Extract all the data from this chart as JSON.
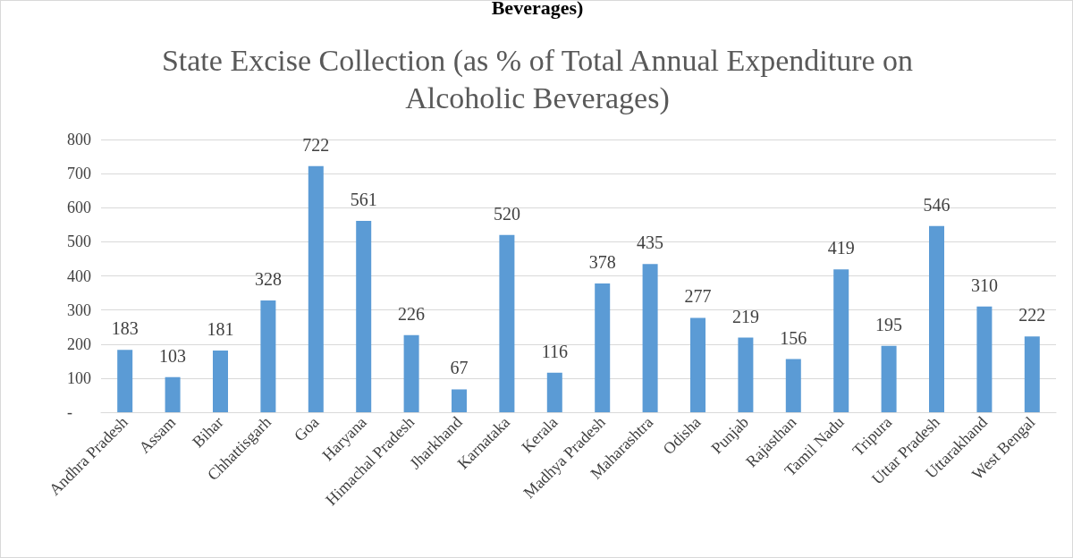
{
  "chart_data": {
    "type": "bar",
    "title": "State Excise Collection (as % of Total Annual Expenditure on\nAlcoholic Beverages)",
    "annotations": [
      "Beverages)"
    ],
    "categories": [
      "Andhra Pradesh",
      "Assam",
      "Bihar",
      "Chhattisgarh",
      "Goa",
      "Haryana",
      "Himachal Pradesh",
      "Jharkhand",
      "Karnataka",
      "Kerala",
      "Madhya Pradesh",
      "Maharashtra",
      "Odisha",
      "Punjab",
      "Rajasthan",
      "Tamil Nadu",
      "Tripura",
      "Uttar Pradesh",
      "Uttarakhand",
      "West Bengal"
    ],
    "values": [
      183,
      103,
      181,
      328,
      722,
      561,
      226,
      67,
      520,
      116,
      378,
      435,
      277,
      219,
      156,
      419,
      195,
      546,
      310,
      222
    ],
    "color": "#5b9bd5",
    "ylim": [
      0,
      800
    ],
    "yticks": [
      {
        "value": 0,
        "label": "-"
      },
      100,
      200,
      300,
      400,
      500,
      600,
      700,
      800
    ],
    "grid": "y",
    "data_labels": true
  }
}
